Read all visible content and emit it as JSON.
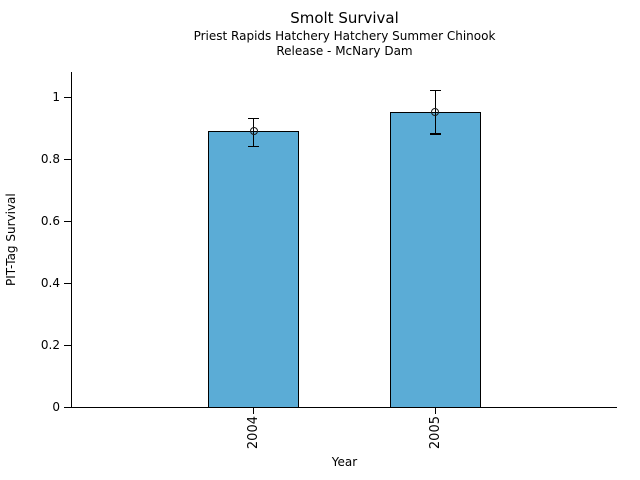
{
  "chart_data": {
    "type": "bar",
    "title": "Smolt Survival",
    "subtitle_lines": [
      "Priest Rapids Hatchery Hatchery Summer Chinook",
      "Release - McNary Dam"
    ],
    "xlabel": "Year",
    "ylabel": "PIT-Tag Survival",
    "categories": [
      "2004",
      "2005"
    ],
    "values": [
      0.89,
      0.95
    ],
    "error_low": [
      0.84,
      0.88
    ],
    "error_high": [
      0.93,
      1.02
    ],
    "ylim": [
      0,
      1.08
    ],
    "yticks": [
      0,
      0.2,
      0.4,
      0.6,
      0.8,
      1
    ],
    "ytick_labels": [
      "0",
      "0.2",
      "0.4",
      "0.6",
      "0.8",
      "1"
    ],
    "grid": false,
    "legend": "none",
    "bar_color": "#5BACD6",
    "bar_edge_color": "#000000",
    "errorbar_color": "#000000",
    "marker": "open-circle",
    "background": "#FFFFFF"
  }
}
